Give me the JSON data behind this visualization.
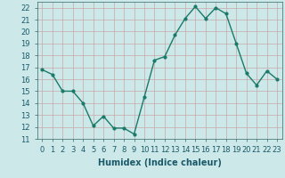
{
  "x": [
    0,
    1,
    2,
    3,
    4,
    5,
    6,
    7,
    8,
    9,
    10,
    11,
    12,
    13,
    14,
    15,
    16,
    17,
    18,
    19,
    20,
    21,
    22,
    23
  ],
  "y": [
    16.8,
    16.4,
    15.0,
    15.0,
    14.0,
    12.1,
    12.9,
    11.9,
    11.9,
    11.4,
    14.5,
    17.6,
    17.9,
    19.7,
    21.1,
    22.1,
    21.1,
    22.0,
    21.5,
    19.0,
    16.5,
    15.5,
    16.7,
    16.0
  ],
  "line_color": "#1a7a6a",
  "marker": "o",
  "marker_size": 2,
  "linewidth": 1.0,
  "xlabel": "Humidex (Indice chaleur)",
  "ylabel": "",
  "xlim": [
    -0.5,
    23.5
  ],
  "ylim": [
    11,
    22.5
  ],
  "yticks": [
    11,
    12,
    13,
    14,
    15,
    16,
    17,
    18,
    19,
    20,
    21,
    22
  ],
  "xtick_labels": [
    "0",
    "1",
    "2",
    "3",
    "4",
    "5",
    "6",
    "7",
    "8",
    "9",
    "10",
    "11",
    "12",
    "13",
    "14",
    "15",
    "16",
    "17",
    "18",
    "19",
    "20",
    "21",
    "22",
    "23"
  ],
  "bg_color": "#cce8e8",
  "grid_color": "#b0d0d0",
  "label_fontsize": 7,
  "tick_fontsize": 6
}
